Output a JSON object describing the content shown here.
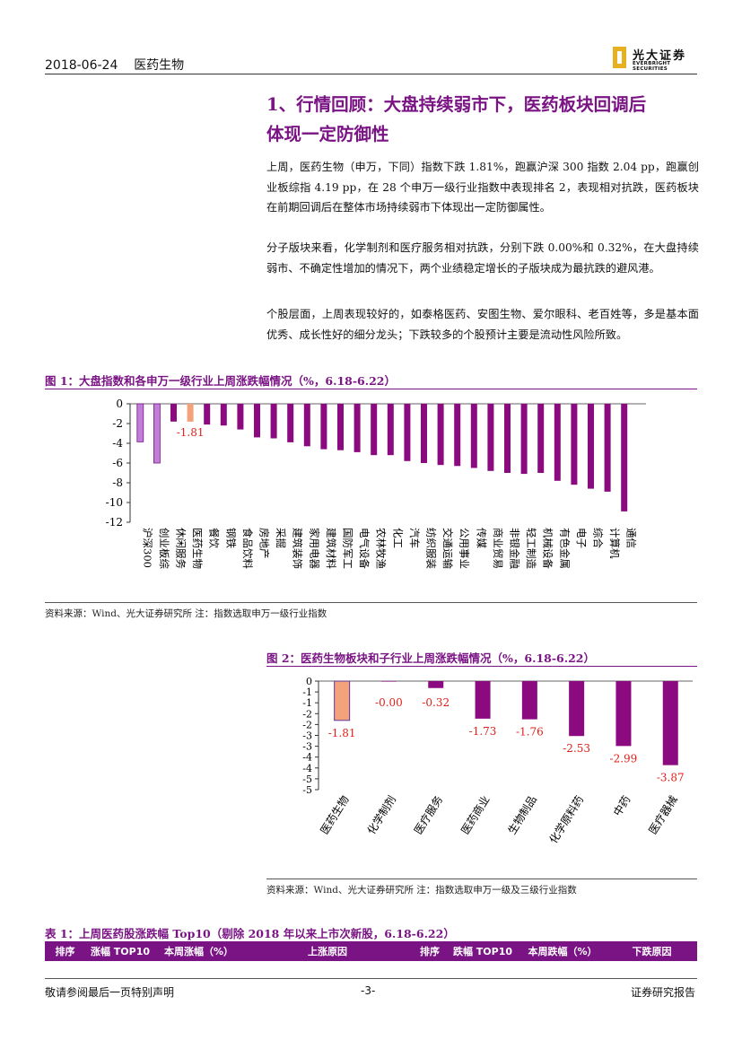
{
  "header": {
    "date": "2018-06-24",
    "sector": "医药生物",
    "logo_cn": "光大证券",
    "logo_en": "EVERBRIGHT SECURITIES"
  },
  "section": {
    "title_line1": "1、行情回顾：大盘持续弱市下，医药板块回调后",
    "title_line2": "体现一定防御性"
  },
  "paragraphs": [
    "上周，医药生物（申万，下同）指数下跌 1.81%，跑赢沪深 300 指数 2.04 pp，跑赢创业板综指 4.19 pp，在 28 个申万一级行业指数中表现排名 2，表现相对抗跌，医药板块在前期回调后在整体市场持续弱市下体现出一定防御属性。",
    "分子版块来看，化学制剂和医疗服务相对抗跌，分别下跌 0.00%和 0.32%，在大盘持续弱市、不确定性增加的情况下，两个业绩稳定增长的子版块成为最抗跌的避风港。",
    "个股层面，上周表现较好的，如泰格医药、安图生物、爱尔眼科、老百姓等，多是基本面优秀、成长性好的细分龙头；下跌较多的个股预计主要是流动性风险所致。"
  ],
  "figure1": {
    "title": "图 1：大盘指数和各申万一级行业上周涨跌幅情况（%，6.18-6.22）",
    "source": "资料来源：Wind、光大证券研究所   注：指数选取申万一级行业指数"
  },
  "figure2": {
    "title": "图 2：医药生物板块和子行业上周涨跌幅情况（%，6.18-6.22）",
    "source": "资料来源：Wind、光大证券研究所   注：指数选取申万一级及三级行业指数"
  },
  "table1": {
    "title": "表 1：上周医药股涨跌幅 Top10（剔除 2018 年以来上市次新股，6.18-6.22）",
    "headers": [
      "排序",
      "涨幅 TOP10",
      "本周涨幅（%）",
      "上涨原因",
      "排序",
      "跌幅 TOP10",
      "本周跌幅（%）",
      "下跌原因"
    ]
  },
  "footer": {
    "left": "敬请参阅最后一页特别声明",
    "center": "-3-",
    "right": "证券研究报告"
  },
  "colors": {
    "accent": "#7a1484",
    "bar_main": "#8b0a7f",
    "bar_light": "#c07ed8",
    "bar_highlight": "#f4a27a",
    "label_red": "#e0201b"
  },
  "chart_data": [
    {
      "type": "bar",
      "categories": [
        "沪深300",
        "创业板综",
        "休闲服务",
        "医药生物",
        "餐饮",
        "钢铁",
        "食品饮料",
        "房地产",
        "采掘",
        "建筑装饰",
        "家用电器",
        "建筑材料",
        "国防军工",
        "电气设备",
        "农林牧渔",
        "化工",
        "汽车",
        "纺织服装",
        "交通运输",
        "公用事业",
        "传媒",
        "商业贸易",
        "非银金融",
        "轻工制造",
        "机械设备",
        "有色金属",
        "电子",
        "综合",
        "计算机",
        "通信"
      ],
      "values": [
        -3.85,
        -6.0,
        -1.8,
        -1.81,
        -2.1,
        -2.2,
        -2.6,
        -3.4,
        -3.5,
        -3.9,
        -4.3,
        -4.6,
        -4.7,
        -4.9,
        -5.2,
        -5.2,
        -5.8,
        -6.0,
        -6.2,
        -6.3,
        -6.5,
        -6.8,
        -7.0,
        -7.1,
        -7.0,
        -7.8,
        -8.2,
        -8.6,
        -8.9,
        -10.9
      ],
      "labels": {
        "医药生物": "-1.81"
      },
      "ylim": [
        -12,
        0
      ],
      "yticks": [
        0,
        -2,
        -4,
        -6,
        -8,
        -10,
        -12
      ],
      "grid": false,
      "legend": "none"
    },
    {
      "type": "bar",
      "categories": [
        "医药生物",
        "化学制剂",
        "医疗服务",
        "医药商业",
        "生物制品",
        "化学原料药",
        "中药",
        "医疗器械"
      ],
      "values": [
        -1.81,
        -0.0,
        -0.32,
        -1.73,
        -1.76,
        -2.53,
        -2.99,
        -3.87
      ],
      "labels": [
        "-1.81",
        "-0.00",
        "-0.32",
        "-1.73",
        "-1.76",
        "-2.53",
        "-2.99",
        "-3.87"
      ],
      "ylim": [
        -5,
        0
      ],
      "yticks": [
        0,
        -0.5,
        -1,
        -1.5,
        -2,
        -2.5,
        -3,
        -3.5,
        -4,
        -4.5,
        -5
      ],
      "ytick_labels": [
        "0",
        "-1",
        "-1",
        "-2",
        "-2",
        "-3",
        "-3",
        "-4",
        "-4",
        "-5",
        "-5"
      ],
      "grid": false,
      "legend": "none"
    }
  ]
}
